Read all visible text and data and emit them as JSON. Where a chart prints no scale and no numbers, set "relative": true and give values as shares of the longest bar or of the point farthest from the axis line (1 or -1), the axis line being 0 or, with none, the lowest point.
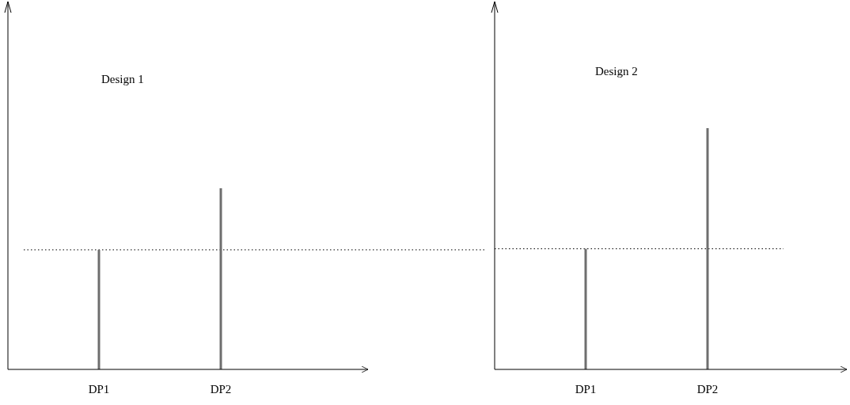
{
  "chart_data": [
    {
      "type": "bar",
      "title": "Design 1",
      "categories": [
        "DP1",
        "DP2"
      ],
      "values": [
        0.66,
        1
      ],
      "relative": true,
      "color": "#6e6e6e",
      "ref_lines": [
        {
          "axis": "y",
          "value": 0.66,
          "line_style": "dotted"
        }
      ]
    },
    {
      "type": "bar",
      "title": "Design 2",
      "categories": [
        "DP1",
        "DP2"
      ],
      "values": [
        0.5,
        1
      ],
      "relative": true,
      "color": "#6e6e6e",
      "ref_lines": [
        {
          "axis": "y",
          "value": 0.5,
          "line_style": "dotted"
        }
      ]
    }
  ]
}
